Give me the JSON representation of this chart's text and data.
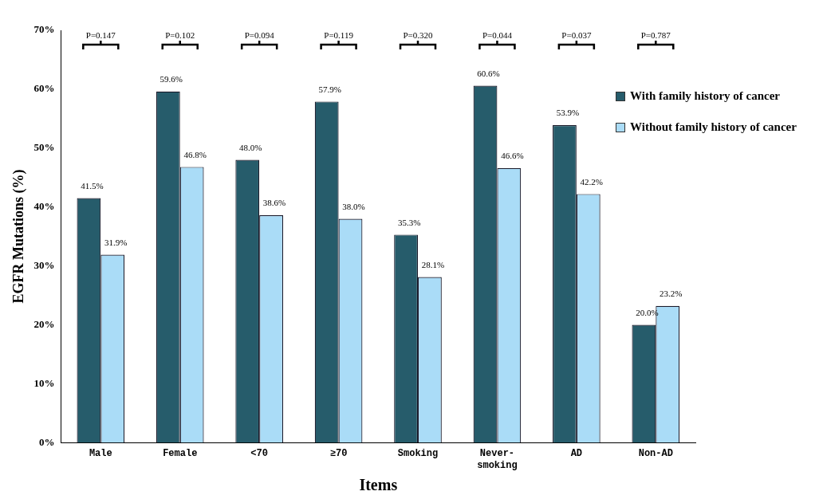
{
  "chart_data": {
    "type": "bar",
    "xlabel": "Items",
    "ylabel": "EGFR Mutations (%)",
    "categories": [
      "Male",
      "Female",
      "<70",
      "≥70",
      "Smoking",
      "Never-smoking",
      "AD",
      "Non-AD"
    ],
    "series": [
      {
        "name": "With family history of cancer",
        "color": "#265c6b",
        "values": [
          41.5,
          59.6,
          48.0,
          57.9,
          35.3,
          60.6,
          53.9,
          20.0
        ],
        "value_labels": [
          "41.5%",
          "59.6%",
          "48.0%",
          "57.9%",
          "35.3%",
          "60.6%",
          "53.9%",
          "20.0%"
        ]
      },
      {
        "name": "Without family history of cancer",
        "color": "#aadcf7",
        "values": [
          31.9,
          46.8,
          38.6,
          38.0,
          28.1,
          46.6,
          42.2,
          23.2
        ],
        "value_labels": [
          "31.9%",
          "46.8%",
          "38.6%",
          "38.0%",
          "28.1%",
          "46.6%",
          "42.2%",
          "23.2%"
        ]
      }
    ],
    "ylim": [
      0,
      70
    ],
    "yticks": [
      {
        "value": 0,
        "label": "0%"
      },
      {
        "value": 10,
        "label": "10%"
      },
      {
        "value": 20,
        "label": "20%"
      },
      {
        "value": 30,
        "label": "30%"
      },
      {
        "value": 40,
        "label": "40%"
      },
      {
        "value": 50,
        "label": "50%"
      },
      {
        "value": 60,
        "label": "60%"
      },
      {
        "value": 70,
        "label": "70%"
      }
    ],
    "annotations": [
      "P=0.147",
      "P=0.102",
      "P=0.094",
      "P=0.119",
      "P=0.320",
      "P=0.044",
      "P=0.037",
      "P=0.787"
    ],
    "grid": false,
    "legend": "right"
  }
}
